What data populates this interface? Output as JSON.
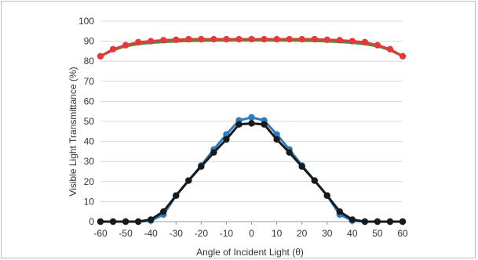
{
  "chart_data": {
    "type": "line",
    "xlabel": "Angle of Incident Light (θ)",
    "ylabel": "Visible Light Transmittance (%)",
    "xlim": [
      -60,
      60
    ],
    "ylim": [
      0,
      100
    ],
    "xticks": [
      "-60",
      "-50",
      "-40",
      "-30",
      "-20",
      "-10",
      "0",
      "10",
      "20",
      "30",
      "40",
      "50",
      "60"
    ],
    "yticks": [
      "0",
      "10",
      "20",
      "30",
      "40",
      "50",
      "60",
      "70",
      "80",
      "90",
      "100"
    ],
    "grid": "horizontal",
    "x": [
      -60,
      -55,
      -50,
      -45,
      -40,
      -35,
      -30,
      -25,
      -20,
      -15,
      -10,
      -5,
      0,
      5,
      10,
      15,
      20,
      25,
      30,
      35,
      40,
      45,
      50,
      55,
      60
    ],
    "series": [
      {
        "color": "#3a9a3a",
        "marker": "none",
        "values": [
          82.5,
          85.5,
          87.5,
          88.5,
          89.2,
          89.6,
          89.9,
          90.1,
          90.2,
          90.3,
          90.3,
          90.4,
          90.4,
          90.4,
          90.3,
          90.3,
          90.2,
          90.1,
          89.9,
          89.6,
          89.2,
          88.5,
          87.5,
          85.5,
          82.5
        ]
      },
      {
        "color": "#e23a3a",
        "marker": "circle",
        "values": [
          82.5,
          86,
          88,
          89.5,
          90,
          90.5,
          90.7,
          91,
          91,
          91,
          91,
          91,
          91,
          91,
          91,
          91,
          91,
          91,
          90.7,
          90.5,
          90,
          89.5,
          88,
          86,
          82.5
        ]
      },
      {
        "color": "#2e7cc0",
        "marker": "circle",
        "values": [
          0,
          0,
          0,
          0,
          0.5,
          3.5,
          13,
          20.5,
          28,
          36,
          43.5,
          50.5,
          52,
          50.5,
          43.5,
          36,
          28,
          20.5,
          13,
          3.5,
          0.5,
          0,
          0,
          0,
          0
        ]
      },
      {
        "color": "#1a1a1a",
        "marker": "circle",
        "values": [
          0,
          0,
          0,
          0,
          1,
          5,
          13,
          20.5,
          27.5,
          34.5,
          41,
          48.5,
          49,
          48.5,
          41,
          34.5,
          27.5,
          20.5,
          13,
          5,
          1,
          0,
          0,
          0,
          0
        ]
      }
    ]
  }
}
